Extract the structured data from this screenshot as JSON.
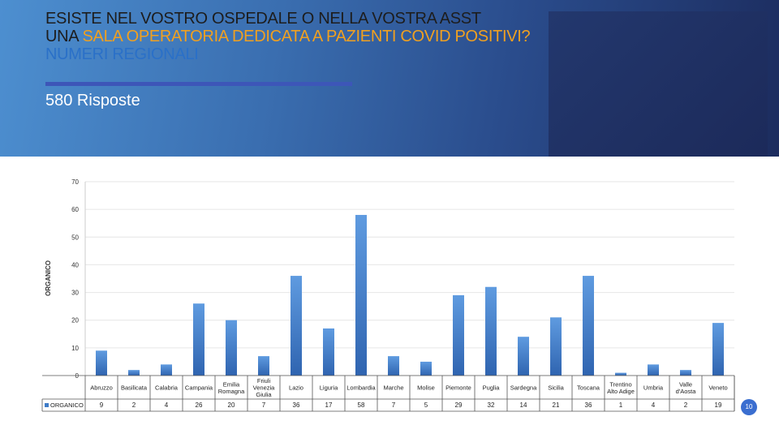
{
  "header": {
    "title_line1": "ESISTE NEL VOSTRO OSPEDALE O NELLA VOSTRA  ASST",
    "title_line2_prefix": "UNA ",
    "title_line2_highlight": "SALA OPERATORIA DEDICATA A PAZIENTI COVID POSITIVI?",
    "title_line3": "NUMERI REGIONALI",
    "responses": "580 Risposte"
  },
  "page_number": "10",
  "colors": {
    "bar": "#3f7cc8",
    "highlight": "#f0a020",
    "accent": "#2a70c8"
  },
  "chart_data": {
    "type": "bar",
    "categories": [
      "Abruzzo",
      "Basilicata",
      "Calabria",
      "Campania",
      "Emilia Romagna",
      "Friuli Venezia Giulia",
      "Lazio",
      "Liguria",
      "Lombardia",
      "Marche",
      "Molise",
      "Piemonte",
      "Puglia",
      "Sardegna",
      "Sicilia",
      "Toscana",
      "Trentino Alto Adige",
      "Umbria",
      "Valle d'Aosta",
      "Veneto"
    ],
    "series": [
      {
        "name": "ORGANICO",
        "values": [
          9,
          2,
          4,
          26,
          20,
          7,
          36,
          17,
          58,
          7,
          5,
          29,
          32,
          14,
          21,
          36,
          1,
          4,
          2,
          19
        ]
      }
    ],
    "ylabel": "ORGANICO",
    "ylim": [
      0,
      70
    ],
    "yticks": [
      0,
      10,
      20,
      30,
      40,
      50,
      60,
      70
    ],
    "table_row_label": "ORGANICO"
  }
}
